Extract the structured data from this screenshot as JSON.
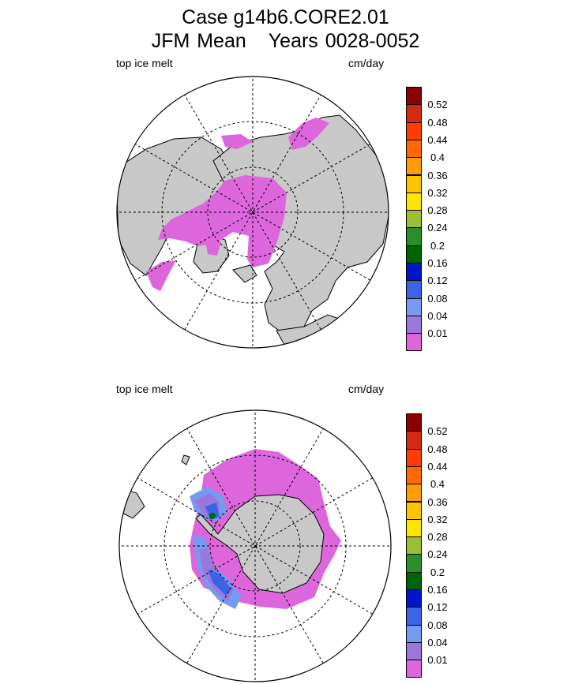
{
  "title": {
    "line1": "Case g14b6.CORE2.01",
    "season": "JFM Mean",
    "years": "Years 0028-0052"
  },
  "panels": [
    {
      "name": "north",
      "variable": "top ice melt",
      "units": "cm/day"
    },
    {
      "name": "south",
      "variable": "top ice melt",
      "units": "cm/day"
    }
  ],
  "colorbar": {
    "labels": [
      "0.52",
      "0.48",
      "0.44",
      "0.4",
      "0.36",
      "0.32",
      "0.28",
      "0.24",
      "0.2",
      "0.16",
      "0.12",
      "0.08",
      "0.04",
      "0.01"
    ],
    "colors": [
      "#8b0000",
      "#d42a14",
      "#ff3d00",
      "#ff6a00",
      "#ff9d00",
      "#ffc400",
      "#ffe600",
      "#9abf34",
      "#2a8e2a",
      "#006400",
      "#0014c8",
      "#3a63e6",
      "#7799f0",
      "#9977dd",
      "#dd66dd"
    ]
  },
  "colors": {
    "land": "#c8c8c8",
    "ice": "#dd66dd"
  }
}
